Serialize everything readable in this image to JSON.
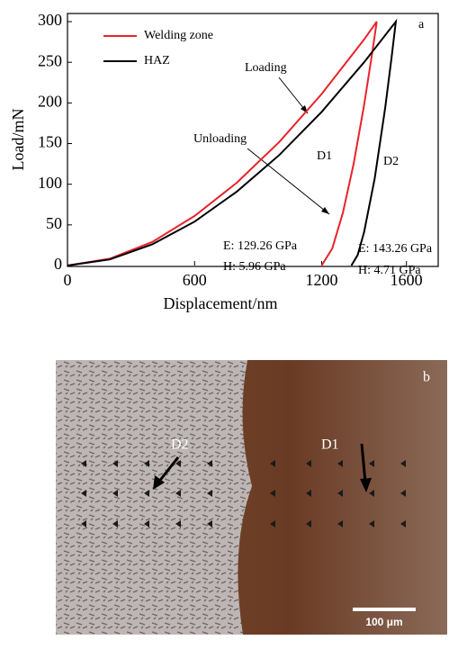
{
  "chart_data": {
    "type": "line",
    "panel_label": "a",
    "xlabel": "Displacement/nm",
    "ylabel": "Load/mN",
    "xlim": [
      0,
      1750
    ],
    "ylim": [
      0,
      310
    ],
    "xticks": [
      0,
      600,
      1200,
      1600
    ],
    "yticks": [
      0,
      50,
      100,
      150,
      200,
      250,
      300
    ],
    "legend": "upper left",
    "series": [
      {
        "name": "Welding zone",
        "color": "#e8232a",
        "x": [
          0,
          200,
          400,
          600,
          800,
          1000,
          1200,
          1400,
          1460,
          1440,
          1400,
          1350,
          1300,
          1250,
          1200
        ],
        "values": [
          0,
          8.4,
          29,
          61,
          102,
          152,
          211,
          278,
          300,
          264,
          197,
          124,
          65,
          21,
          0
        ]
      },
      {
        "name": "HAZ",
        "color": "#000000",
        "x": [
          0,
          200,
          400,
          600,
          800,
          1000,
          1200,
          1400,
          1550,
          1530,
          1500,
          1450,
          1400,
          1370,
          1340
        ],
        "values": [
          0,
          7.5,
          26,
          54,
          91,
          136,
          189,
          250,
          300,
          256,
          194,
          107,
          41,
          13,
          0
        ]
      }
    ],
    "annotations": [
      "Loading",
      "Unloading",
      "D1",
      "D2",
      "E: 129.26 GPa",
      "H: 5.96 GPa",
      "E: 143.26 GPa",
      "H: 4.71 GPa"
    ]
  },
  "micrograph": {
    "panel_label": "b",
    "labels": [
      "D2",
      "D1"
    ],
    "scale_bar": "100 μm"
  }
}
